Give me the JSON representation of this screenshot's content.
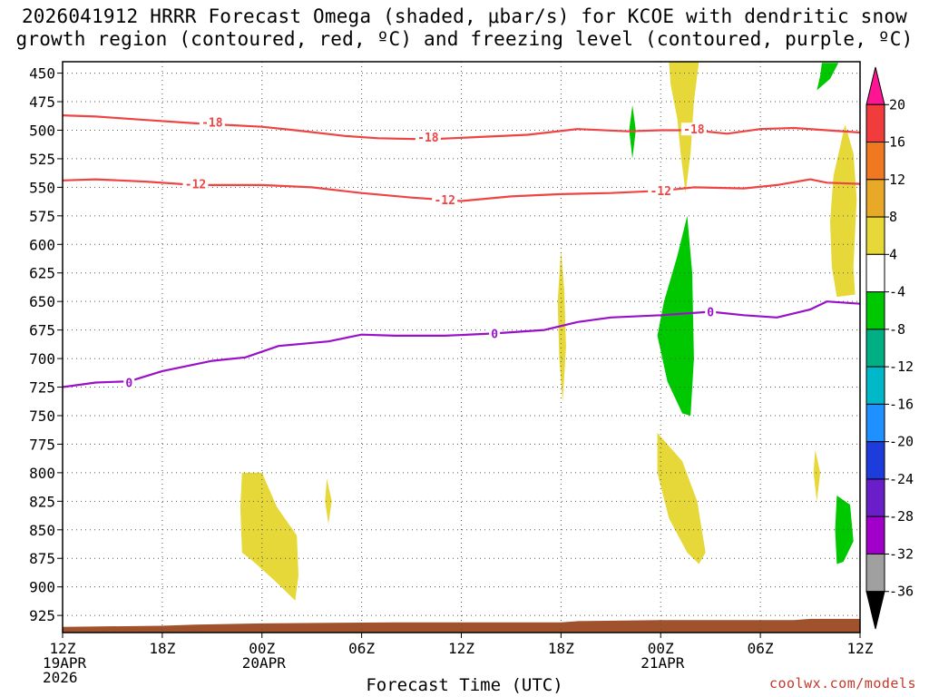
{
  "title_line1": "2026041912 HRRR Forecast Omega (shaded, μbar/s) for KCOE with dendritic snow",
  "title_line2": "growth region (contoured, red, ºC) and freezing level (contoured, purple, ºC)",
  "x_axis_title": "Forecast Time (UTC)",
  "credit": "coolwx.com/models",
  "colors": {
    "dgz": "#ee4444",
    "freezing": "#9a10c9",
    "terrain": "#a0522d",
    "grid": "#555555"
  },
  "chart_data": {
    "type": "heatmap",
    "x_range_hours": [
      0,
      48
    ],
    "y_range_mb": [
      440,
      940
    ],
    "y_ticks": [
      450,
      475,
      500,
      525,
      550,
      575,
      600,
      625,
      650,
      675,
      700,
      725,
      750,
      775,
      800,
      825,
      850,
      875,
      900,
      925
    ],
    "x_ticks": [
      {
        "h": 0,
        "label": "12Z",
        "sub1": "19APR",
        "sub2": "2026"
      },
      {
        "h": 6,
        "label": "18Z",
        "sub1": "",
        "sub2": ""
      },
      {
        "h": 12,
        "label": "00Z",
        "sub1": "20APR",
        "sub2": ""
      },
      {
        "h": 18,
        "label": "06Z",
        "sub1": "",
        "sub2": ""
      },
      {
        "h": 24,
        "label": "12Z",
        "sub1": "",
        "sub2": ""
      },
      {
        "h": 30,
        "label": "18Z",
        "sub1": "",
        "sub2": ""
      },
      {
        "h": 36,
        "label": "00Z",
        "sub1": "21APR",
        "sub2": ""
      },
      {
        "h": 42,
        "label": "06Z",
        "sub1": "",
        "sub2": ""
      },
      {
        "h": 48,
        "label": "12Z",
        "sub1": "",
        "sub2": ""
      }
    ],
    "colorbar": {
      "levels": [
        20,
        16,
        12,
        8,
        4,
        -4,
        -8,
        -12,
        -16,
        -20,
        -24,
        -28,
        -32,
        -36
      ],
      "colors": [
        "#ff1493",
        "#f03c3c",
        "#f07820",
        "#e8a828",
        "#e6d838",
        "#ffffff",
        "#00c800",
        "#00b084",
        "#00b8c8",
        "#1e90ff",
        "#1e3cdc",
        "#6a1ec8",
        "#a000c8",
        "#a0a0a0",
        "#000000"
      ]
    },
    "contours": [
      {
        "name": "dgz-minus-18",
        "value": -18,
        "label": "-18",
        "color": "#ee4444",
        "points": [
          [
            0,
            487
          ],
          [
            2,
            488
          ],
          [
            5,
            491
          ],
          [
            8,
            494
          ],
          [
            12,
            497
          ],
          [
            14,
            500
          ],
          [
            17,
            505
          ],
          [
            19,
            507
          ],
          [
            22,
            508
          ],
          [
            25,
            506
          ],
          [
            28,
            504
          ],
          [
            31,
            499
          ],
          [
            34,
            501
          ],
          [
            36,
            500
          ],
          [
            38,
            500
          ],
          [
            40,
            503
          ],
          [
            42,
            499
          ],
          [
            44,
            498
          ],
          [
            46,
            500
          ],
          [
            48,
            502
          ]
        ],
        "label_at": [
          [
            9,
            493
          ],
          [
            22,
            506
          ],
          [
            38,
            499
          ]
        ]
      },
      {
        "name": "dgz-minus-12",
        "value": -12,
        "label": "-12",
        "color": "#ee4444",
        "points": [
          [
            0,
            544
          ],
          [
            2,
            543
          ],
          [
            5,
            545
          ],
          [
            8,
            548
          ],
          [
            12,
            548
          ],
          [
            15,
            550
          ],
          [
            18,
            555
          ],
          [
            21,
            559
          ],
          [
            24,
            562
          ],
          [
            27,
            558
          ],
          [
            30,
            556
          ],
          [
            33,
            555
          ],
          [
            36,
            553
          ],
          [
            38,
            550
          ],
          [
            41,
            551
          ],
          [
            43,
            548
          ],
          [
            45,
            543
          ],
          [
            46,
            546
          ],
          [
            48,
            547
          ]
        ],
        "label_at": [
          [
            8,
            547
          ],
          [
            23,
            561
          ],
          [
            36,
            553
          ]
        ]
      },
      {
        "name": "freezing-level",
        "value": 0,
        "label": "0",
        "color": "#9a10c9",
        "points": [
          [
            0,
            725
          ],
          [
            2,
            721
          ],
          [
            4,
            720
          ],
          [
            6,
            711
          ],
          [
            9,
            702
          ],
          [
            11,
            699
          ],
          [
            13,
            689
          ],
          [
            16,
            685
          ],
          [
            18,
            679
          ],
          [
            20,
            680
          ],
          [
            23,
            680
          ],
          [
            26,
            678
          ],
          [
            29,
            675
          ],
          [
            31,
            668
          ],
          [
            33,
            664
          ],
          [
            36,
            662
          ],
          [
            39,
            659
          ],
          [
            41,
            662
          ],
          [
            43,
            664
          ],
          [
            45,
            657
          ],
          [
            46,
            650
          ],
          [
            48,
            652
          ]
        ],
        "label_at": [
          [
            4,
            721
          ],
          [
            26,
            678
          ],
          [
            39,
            659
          ]
        ]
      }
    ],
    "omega_regions": [
      {
        "name": "omega-upward-4-a",
        "value": "-4 to -8",
        "color": "#00c800",
        "points": [
          [
            45.7,
            441
          ],
          [
            46.7,
            441
          ],
          [
            46.2,
            455
          ],
          [
            45.4,
            465
          ],
          [
            45.6,
            452
          ]
        ]
      },
      {
        "name": "omega-upward-4-b",
        "value": "-4 to -8",
        "color": "#00c800",
        "points": [
          [
            34.3,
            478
          ],
          [
            34.5,
            500
          ],
          [
            34.3,
            525
          ],
          [
            34.1,
            500
          ]
        ]
      },
      {
        "name": "omega-upward-4-c",
        "value": "-4 to -8",
        "color": "#00c800",
        "points": [
          [
            37.6,
            575
          ],
          [
            37.9,
            625
          ],
          [
            38.0,
            700
          ],
          [
            37.8,
            750
          ],
          [
            37.3,
            748
          ],
          [
            36.4,
            720
          ],
          [
            35.8,
            680
          ],
          [
            36.2,
            650
          ],
          [
            37.0,
            610
          ]
        ]
      },
      {
        "name": "omega-upward-4-d",
        "value": "-4 to -8",
        "color": "#00c800",
        "points": [
          [
            46.6,
            820
          ],
          [
            47.4,
            828
          ],
          [
            47.6,
            860
          ],
          [
            47.0,
            878
          ],
          [
            46.6,
            880
          ],
          [
            46.5,
            850
          ]
        ]
      },
      {
        "name": "omega-downward-4-a",
        "value": "4 to 8",
        "color": "#e6d838",
        "points": [
          [
            36.5,
            440
          ],
          [
            38.3,
            440
          ],
          [
            38.0,
            475
          ],
          [
            37.8,
            520
          ],
          [
            37.5,
            555
          ],
          [
            37.2,
            520
          ],
          [
            37.0,
            490
          ],
          [
            36.6,
            460
          ]
        ]
      },
      {
        "name": "omega-downward-4-b",
        "value": "4 to 8",
        "color": "#e6d838",
        "points": [
          [
            47.1,
            495
          ],
          [
            47.6,
            520
          ],
          [
            47.8,
            560
          ],
          [
            47.6,
            620
          ],
          [
            47.7,
            644
          ],
          [
            46.6,
            646
          ],
          [
            46.3,
            620
          ],
          [
            46.2,
            580
          ],
          [
            46.4,
            540
          ]
        ]
      },
      {
        "name": "omega-downward-4-c",
        "value": "4 to 8",
        "color": "#e6d838",
        "points": [
          [
            30.0,
            605
          ],
          [
            30.2,
            640
          ],
          [
            30.3,
            690
          ],
          [
            30.1,
            738
          ],
          [
            29.9,
            700
          ],
          [
            29.8,
            650
          ]
        ]
      },
      {
        "name": "omega-downward-4-d",
        "value": "4 to 8",
        "color": "#e6d838",
        "points": [
          [
            35.8,
            765
          ],
          [
            37.3,
            790
          ],
          [
            38.2,
            825
          ],
          [
            38.7,
            870
          ],
          [
            38.3,
            880
          ],
          [
            37.6,
            870
          ],
          [
            36.5,
            840
          ],
          [
            35.8,
            800
          ]
        ]
      },
      {
        "name": "omega-downward-4-e",
        "value": "4 to 8",
        "color": "#e6d838",
        "points": [
          [
            45.3,
            780
          ],
          [
            45.6,
            800
          ],
          [
            45.4,
            825
          ],
          [
            45.2,
            800
          ]
        ]
      },
      {
        "name": "omega-downward-4-f",
        "value": "4 to 8",
        "color": "#e6d838",
        "points": [
          [
            10.8,
            800
          ],
          [
            12.0,
            800
          ],
          [
            12.9,
            830
          ],
          [
            14.1,
            855
          ],
          [
            14.2,
            890
          ],
          [
            14.0,
            912
          ],
          [
            12.8,
            895
          ],
          [
            11.5,
            878
          ],
          [
            10.8,
            870
          ],
          [
            10.7,
            830
          ]
        ]
      },
      {
        "name": "omega-downward-4-g",
        "value": "4 to 8",
        "color": "#e6d838",
        "points": [
          [
            15.9,
            805
          ],
          [
            16.2,
            825
          ],
          [
            16.0,
            845
          ],
          [
            15.8,
            825
          ]
        ]
      }
    ],
    "terrain": {
      "name": "terrain-surface",
      "color": "#a0522d",
      "top_points": [
        [
          0,
          935
        ],
        [
          6,
          934
        ],
        [
          8,
          933
        ],
        [
          12,
          932
        ],
        [
          20,
          931
        ],
        [
          30,
          931
        ],
        [
          31,
          930
        ],
        [
          36,
          929
        ],
        [
          44,
          929
        ],
        [
          45,
          928
        ],
        [
          48,
          928
        ]
      ]
    }
  }
}
